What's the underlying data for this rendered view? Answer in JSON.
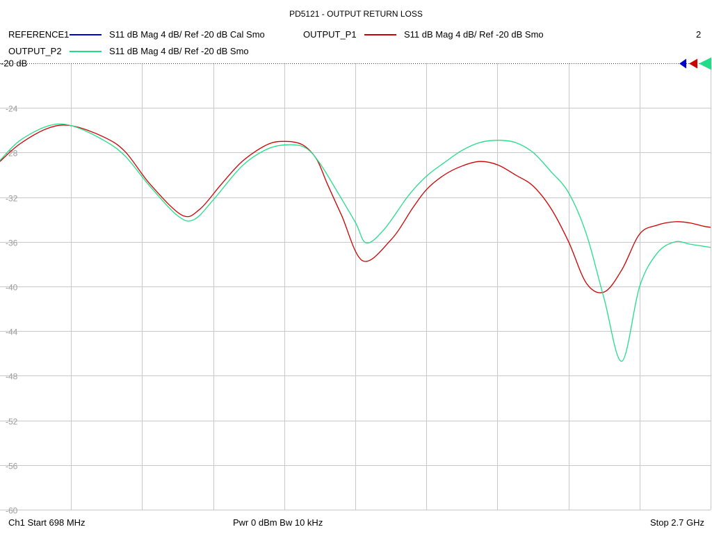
{
  "header": {
    "title": "PD5121 - OUTPUT RETURN LOSS",
    "channel_number": "2"
  },
  "legend": [
    {
      "name": "REFERENCE1",
      "desc": "S11  dB Mag  4 dB/ Ref -20 dB  Cal Smo",
      "color": "#0000cc"
    },
    {
      "name": "OUTPUT_P1",
      "desc": "S11  dB Mag  4 dB/ Ref -20 dB  Smo",
      "color": "#cc0000"
    },
    {
      "name": "OUTPUT_P2",
      "desc": "S11  dB Mag  4 dB/ Ref -20 dB  Smo",
      "color": "#22dd88"
    }
  ],
  "footer": {
    "start": "Ch1  Start  698 MHz",
    "power": "Pwr  0 dBm  Bw  10 kHz",
    "stop": "Stop  2.7 GHz"
  },
  "chart_data": {
    "type": "line",
    "ref_label": "-20 dB",
    "xlim": [
      698,
      2700
    ],
    "xunit": "MHz",
    "ylim": [
      -60,
      -20
    ],
    "yticks": [
      -24,
      -28,
      -32,
      -36,
      -40,
      -44,
      -48,
      -52,
      -56,
      -60
    ],
    "ytick_labels": [
      "-24",
      "-28",
      "-32",
      "-36",
      "-40",
      "-44",
      "-48",
      "-52",
      "-56",
      "-60"
    ],
    "grid": true,
    "series": [
      {
        "name": "OUTPUT_P1",
        "color": "#cc0000",
        "x": [
          698,
          755,
          835,
          900,
          990,
          1050,
          1120,
          1210,
          1260,
          1320,
          1380,
          1450,
          1500,
          1550,
          1590,
          1620,
          1660,
          1720,
          1800,
          1860,
          1900,
          1950,
          2000,
          2050,
          2100,
          2150,
          2200,
          2250,
          2300,
          2350,
          2400,
          2450,
          2500,
          2550,
          2600,
          2640,
          2680,
          2700
        ],
        "values": [
          -28.8,
          -27.2,
          -25.8,
          -25.6,
          -26.6,
          -27.9,
          -30.8,
          -33.6,
          -33.1,
          -30.9,
          -28.8,
          -27.3,
          -27.0,
          -27.3,
          -28.6,
          -30.8,
          -33.6,
          -37.7,
          -35.8,
          -33.0,
          -31.3,
          -30.0,
          -29.2,
          -28.8,
          -29.1,
          -30.0,
          -31.0,
          -33.0,
          -36.0,
          -39.7,
          -40.5,
          -38.5,
          -35.3,
          -34.5,
          -34.2,
          -34.3,
          -34.6,
          -34.7
        ]
      },
      {
        "name": "OUTPUT_P2",
        "color": "#22dd88",
        "x": [
          698,
          755,
          835,
          900,
          990,
          1050,
          1120,
          1200,
          1245,
          1300,
          1380,
          1450,
          1510,
          1560,
          1600,
          1650,
          1700,
          1730,
          1780,
          1850,
          1900,
          1950,
          2000,
          2050,
          2100,
          2150,
          2200,
          2250,
          2300,
          2350,
          2400,
          2450,
          2500,
          2550,
          2600,
          2640,
          2680,
          2700
        ],
        "values": [
          -28.7,
          -26.9,
          -25.6,
          -25.6,
          -26.9,
          -28.3,
          -31.0,
          -33.7,
          -34.0,
          -32.2,
          -29.2,
          -27.7,
          -27.3,
          -27.6,
          -29.0,
          -31.6,
          -34.3,
          -36.1,
          -34.9,
          -31.8,
          -30.1,
          -28.9,
          -27.8,
          -27.1,
          -26.9,
          -27.1,
          -28.0,
          -29.7,
          -31.6,
          -35.3,
          -41.1,
          -46.7,
          -40.0,
          -37.0,
          -36.0,
          -36.2,
          -36.4,
          -36.5
        ]
      },
      {
        "name": "REFERENCE1",
        "color": "#0000cc",
        "x": [],
        "values": []
      }
    ]
  }
}
